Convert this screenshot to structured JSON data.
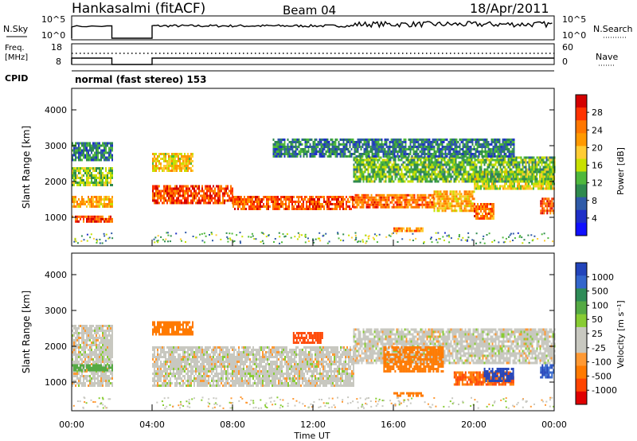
{
  "header": {
    "title": "Hankasalmi (fitACF)",
    "beam": "Beam 04",
    "date": "18/Apr/2011"
  },
  "panels": {
    "nsky": {
      "label": "N.Sky",
      "right_label": "N.Search",
      "ticks_left": [
        "10^5",
        "10^0"
      ],
      "ticks_right": [
        "10^5",
        "10^0"
      ]
    },
    "freq": {
      "label_line1": "Freq.",
      "label_line2": "[MHz]",
      "right_label": "Nave",
      "ticks_left": [
        "18",
        "8"
      ],
      "ticks_right": [
        "60",
        "0"
      ]
    },
    "cpid": {
      "label": "CPID",
      "text": "normal (fast stereo) 153"
    }
  },
  "colorbars": {
    "power": {
      "label": "Power [dB]",
      "ticks": [
        "28",
        "24",
        "20",
        "16",
        "12",
        "8",
        "4"
      ],
      "colors": [
        "#d40000",
        "#ff3300",
        "#ff7700",
        "#ff9900",
        "#ffcc33",
        "#c8e000",
        "#4fb83c",
        "#2f8a4e",
        "#2f5aa8",
        "#1e2fc8",
        "#1010ff"
      ]
    },
    "velocity": {
      "label": "Velocity [m s⁻¹]",
      "ticks": [
        "1000",
        "500",
        "100",
        "50",
        "25",
        "-25",
        "-100",
        "-500",
        "-1000"
      ],
      "colors": [
        "#2244bb",
        "#3366cc",
        "#2e8b57",
        "#55aa44",
        "#88cc33",
        "#c8c8c0",
        "#c8c8c0",
        "#ff9933",
        "#ff7a00",
        "#ff4400",
        "#e00000"
      ]
    }
  },
  "chart_data": [
    {
      "type": "heatmap",
      "name": "power",
      "ylabel": "Slant Range [km]",
      "ylim": [
        200,
        4600
      ],
      "yticks": [
        "1000",
        "2000",
        "3000",
        "4000"
      ],
      "xlim_hours": [
        0,
        24
      ],
      "data_gap_hours": [
        2,
        4
      ],
      "bands": [
        {
          "t0": 0,
          "t1": 2,
          "r0": 850,
          "r1": 1050,
          "dB": 26
        },
        {
          "t0": 0,
          "t1": 2,
          "r0": 1300,
          "r1": 1600,
          "dB": 20
        },
        {
          "t0": 0,
          "t1": 2,
          "r0": 1900,
          "r1": 2400,
          "dB": 14
        },
        {
          "t0": 0,
          "t1": 2,
          "r0": 2600,
          "r1": 3100,
          "dB": 8
        },
        {
          "t0": 4,
          "t1": 8,
          "r0": 1400,
          "r1": 1900,
          "dB": 26
        },
        {
          "t0": 4,
          "t1": 6,
          "r0": 2300,
          "r1": 2800,
          "dB": 18
        },
        {
          "t0": 8,
          "t1": 14,
          "r0": 1200,
          "r1": 1600,
          "dB": 26
        },
        {
          "t0": 14,
          "t1": 18,
          "r0": 1250,
          "r1": 1650,
          "dB": 24
        },
        {
          "t0": 18,
          "t1": 20,
          "r0": 1200,
          "r1": 1750,
          "dB": 20
        },
        {
          "t0": 20,
          "t1": 24,
          "r0": 1800,
          "r1": 2300,
          "dB": 16
        },
        {
          "t0": 14,
          "t1": 24,
          "r0": 2000,
          "r1": 2700,
          "dB": 12
        },
        {
          "t0": 10,
          "t1": 22,
          "r0": 2700,
          "r1": 3200,
          "dB": 8
        },
        {
          "t0": 16,
          "t1": 17.5,
          "r0": 620,
          "r1": 720,
          "dB": 22
        },
        {
          "t0": 20,
          "t1": 21,
          "r0": 950,
          "r1": 1400,
          "dB": 24
        },
        {
          "t0": 23.3,
          "t1": 24,
          "r0": 1100,
          "r1": 1550,
          "dB": 26
        }
      ]
    },
    {
      "type": "heatmap",
      "name": "velocity",
      "ylabel": "Slant Range [km]",
      "xlabel": "Time UT",
      "ylim": [
        200,
        4600
      ],
      "yticks": [
        "1000",
        "2000",
        "3000",
        "4000"
      ],
      "xticks": [
        "00:00",
        "04:00",
        "08:00",
        "12:00",
        "16:00",
        "20:00",
        "00:00"
      ],
      "xlim_hours": [
        0,
        24
      ],
      "data_gap_hours": [
        2,
        4
      ],
      "bands": [
        {
          "t0": 0,
          "t1": 2,
          "r0": 900,
          "r1": 2600,
          "v": 0
        },
        {
          "t0": 0,
          "t1": 2,
          "r0": 1300,
          "r1": 1500,
          "v": 300
        },
        {
          "t0": 4,
          "t1": 14,
          "r0": 900,
          "r1": 2000,
          "v": 0
        },
        {
          "t0": 4,
          "t1": 6,
          "r0": 2300,
          "r1": 2700,
          "v": -300
        },
        {
          "t0": 14,
          "t1": 24,
          "r0": 1500,
          "r1": 2500,
          "v": 0
        },
        {
          "t0": 11,
          "t1": 12.5,
          "r0": 2100,
          "r1": 2400,
          "v": -600
        },
        {
          "t0": 15.5,
          "t1": 18.5,
          "r0": 1300,
          "r1": 2000,
          "v": -300
        },
        {
          "t0": 16,
          "t1": 17.5,
          "r0": 600,
          "r1": 720,
          "v": -200
        },
        {
          "t0": 19,
          "t1": 22,
          "r0": 950,
          "r1": 1300,
          "v": -400
        },
        {
          "t0": 20.5,
          "t1": 22,
          "r0": 1050,
          "r1": 1400,
          "v": 800
        },
        {
          "t0": 23.3,
          "t1": 24,
          "r0": 1100,
          "r1": 1500,
          "v": 700
        }
      ]
    }
  ]
}
